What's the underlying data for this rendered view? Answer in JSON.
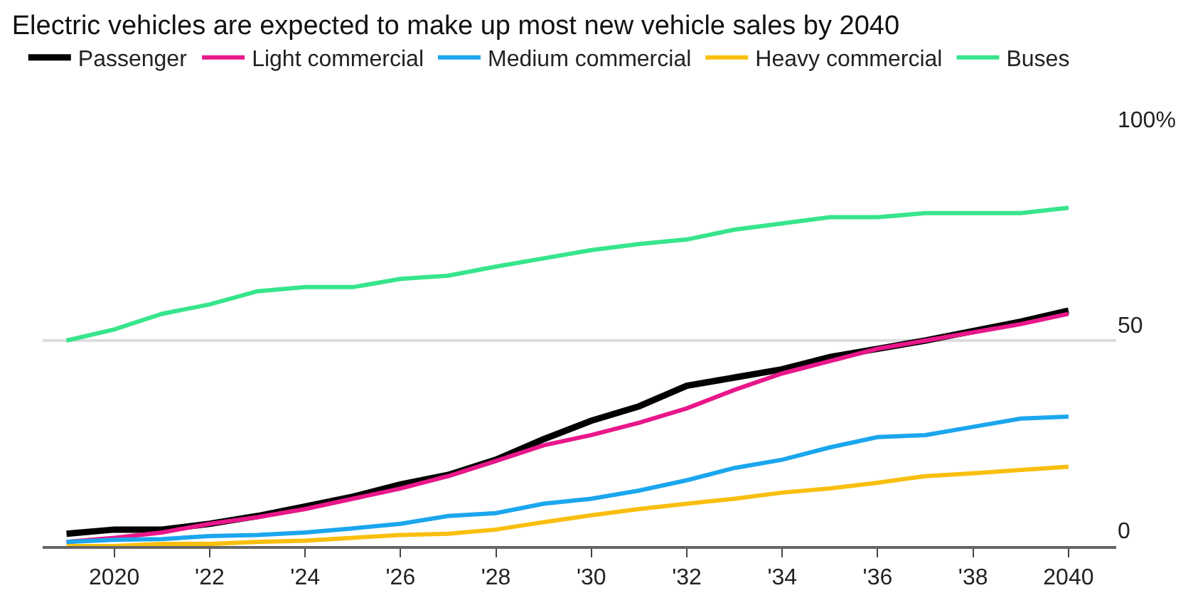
{
  "chart_data": {
    "type": "line",
    "title": "Electric vehicles are expected to make up most new vehicle sales by 2040",
    "x": [
      2019,
      2020,
      2021,
      2022,
      2023,
      2024,
      2025,
      2026,
      2027,
      2028,
      2029,
      2030,
      2031,
      2032,
      2033,
      2034,
      2035,
      2036,
      2037,
      2038,
      2039,
      2040
    ],
    "series": [
      {
        "name": "Passenger",
        "color": "#000000",
        "values": [
          3,
          4,
          4,
          5.4,
          7.3,
          9.6,
          12,
          15,
          17.3,
          21,
          26,
          30.5,
          34,
          39,
          41,
          43,
          46,
          48,
          50,
          52.3,
          54.6,
          57.3
        ]
      },
      {
        "name": "Light commercial",
        "color": "#e8178a",
        "values": [
          1,
          2,
          3.3,
          5.4,
          7,
          9,
          11.5,
          14,
          17,
          20.7,
          24.5,
          27,
          30,
          33.5,
          38,
          42,
          45,
          48,
          50,
          52,
          54,
          56.5
        ]
      },
      {
        "name": "Medium commercial",
        "color": "#1ba6ee",
        "values": [
          1,
          1.5,
          1.7,
          2.4,
          2.7,
          3.3,
          4.3,
          5.4,
          7.3,
          8,
          10.3,
          11.5,
          13.5,
          16,
          19,
          21,
          24,
          26.5,
          27,
          29,
          31,
          31.5
        ]
      },
      {
        "name": "Heavy commercial",
        "color": "#f9bf0f",
        "values": [
          0,
          0,
          0.5,
          0.5,
          1,
          1.3,
          2,
          2.7,
          3,
          4,
          5.8,
          7.5,
          9,
          10.3,
          11.5,
          13,
          14,
          15.4,
          17,
          17.7,
          18.5,
          19.3
        ]
      },
      {
        "name": "Buses",
        "color": "#37e58c",
        "values": [
          50,
          52.7,
          56.5,
          58.8,
          62,
          63,
          63,
          65,
          65.8,
          68,
          70,
          72,
          73.5,
          74.6,
          77,
          78.5,
          80,
          80,
          81,
          81,
          81,
          82.3
        ]
      }
    ],
    "xlim": [
      2018.5,
      2041
    ],
    "xticks": [
      2020,
      {
        "value": 2022,
        "label": "'22"
      },
      {
        "value": 2024,
        "label": "'24"
      },
      {
        "value": 2026,
        "label": "'26"
      },
      {
        "value": 2028,
        "label": "'28"
      },
      {
        "value": 2030,
        "label": "'30"
      },
      {
        "value": 2032,
        "label": "'32"
      },
      {
        "value": 2034,
        "label": "'34"
      },
      {
        "value": 2036,
        "label": "'36"
      },
      {
        "value": 2038,
        "label": "'38"
      },
      2040
    ],
    "ylim": [
      0,
      100
    ],
    "yticks": [
      0,
      50,
      {
        "value": 100,
        "label": "100%"
      }
    ],
    "grid": "y",
    "legend": "top left",
    "marker": "none",
    "line_style": "solid"
  }
}
